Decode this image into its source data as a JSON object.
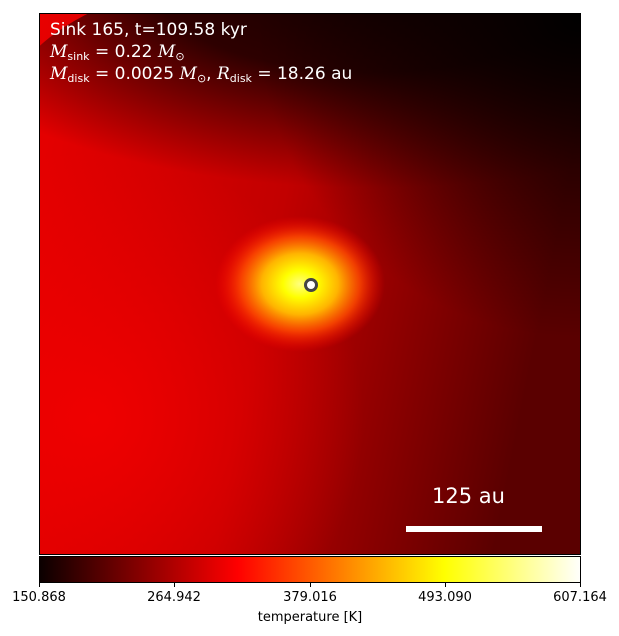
{
  "annotations": {
    "line1": "Sink 165, t=109.58 kyr",
    "msink_sub": "sink",
    "msink_value": "0.22",
    "mdisk_sub": "disk",
    "mdisk_value": "0.0025",
    "rdisk_sub": "disk",
    "rdisk_value": "18.26",
    "au_unit": "au"
  },
  "scale_bar": {
    "label": "125 au"
  },
  "colorbar": {
    "label": "temperature [K]",
    "ticks": [
      "150.868",
      "264.942",
      "379.016",
      "493.090",
      "607.164"
    ],
    "colormap": "hot"
  },
  "chart_data": {
    "type": "heatmap",
    "quantity": "temperature [K]",
    "colorbar_range": [
      150.868,
      607.164
    ],
    "colorbar_ticks": [
      150.868,
      264.942,
      379.016,
      493.09,
      607.164
    ],
    "sink": {
      "id": 165,
      "time_kyr": 109.58,
      "mass_msun": 0.22
    },
    "disk": {
      "mass_msun": 0.0025,
      "radius_au": 18.26
    },
    "scale_bar_au": 125
  }
}
